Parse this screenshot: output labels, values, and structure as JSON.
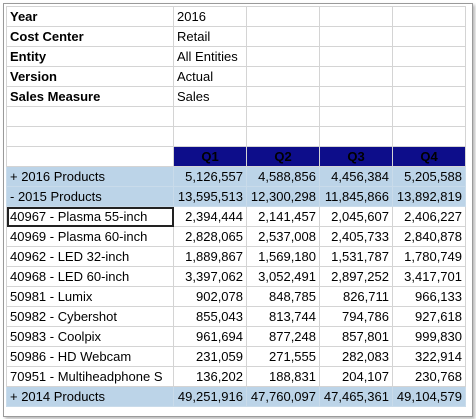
{
  "pov": [
    {
      "label": "Year",
      "value": "2016"
    },
    {
      "label": "Cost Center",
      "value": "Retail"
    },
    {
      "label": "Entity",
      "value": "All Entities"
    },
    {
      "label": "Version",
      "value": "Actual"
    },
    {
      "label": "Sales Measure",
      "value": "Sales"
    }
  ],
  "quarters": [
    "Q1",
    "Q2",
    "Q3",
    "Q4"
  ],
  "rows": [
    {
      "name": "+ 2016 Products",
      "values": [
        "5,126,557",
        "4,588,856",
        "4,456,384",
        "5,205,588"
      ],
      "group": true
    },
    {
      "name": "- 2015 Products",
      "values": [
        "13,595,513",
        "12,300,298",
        "11,845,866",
        "13,892,819"
      ],
      "group": true
    },
    {
      "name": "40967 - Plasma 55-inch",
      "values": [
        "2,394,444",
        "2,141,457",
        "2,045,607",
        "2,406,227"
      ],
      "selected": true
    },
    {
      "name": "40969 - Plasma 60-inch",
      "values": [
        "2,828,065",
        "2,537,008",
        "2,405,733",
        "2,840,878"
      ]
    },
    {
      "name": "40962 - LED 32-inch",
      "values": [
        "1,889,867",
        "1,569,180",
        "1,531,787",
        "1,780,749"
      ]
    },
    {
      "name": "40968 - LED 60-inch",
      "values": [
        "3,397,062",
        "3,052,491",
        "2,897,252",
        "3,417,701"
      ]
    },
    {
      "name": "50981 - Lumix",
      "values": [
        "902,078",
        "848,785",
        "826,711",
        "966,133"
      ]
    },
    {
      "name": "50982 - Cybershot",
      "values": [
        "855,043",
        "813,744",
        "794,786",
        "927,618"
      ]
    },
    {
      "name": "50983 - Coolpix",
      "values": [
        "961,694",
        "877,248",
        "857,801",
        "999,830"
      ]
    },
    {
      "name": "50986 - HD Webcam",
      "values": [
        "231,059",
        "271,555",
        "282,083",
        "322,914"
      ]
    },
    {
      "name": "70951 - Multiheadphone S",
      "values": [
        "136,202",
        "188,831",
        "204,107",
        "230,768"
      ]
    },
    {
      "name": "+ 2014 Products",
      "values": [
        "49,251,916",
        "47,760,097",
        "47,465,361",
        "49,104,579"
      ],
      "group": true
    }
  ]
}
